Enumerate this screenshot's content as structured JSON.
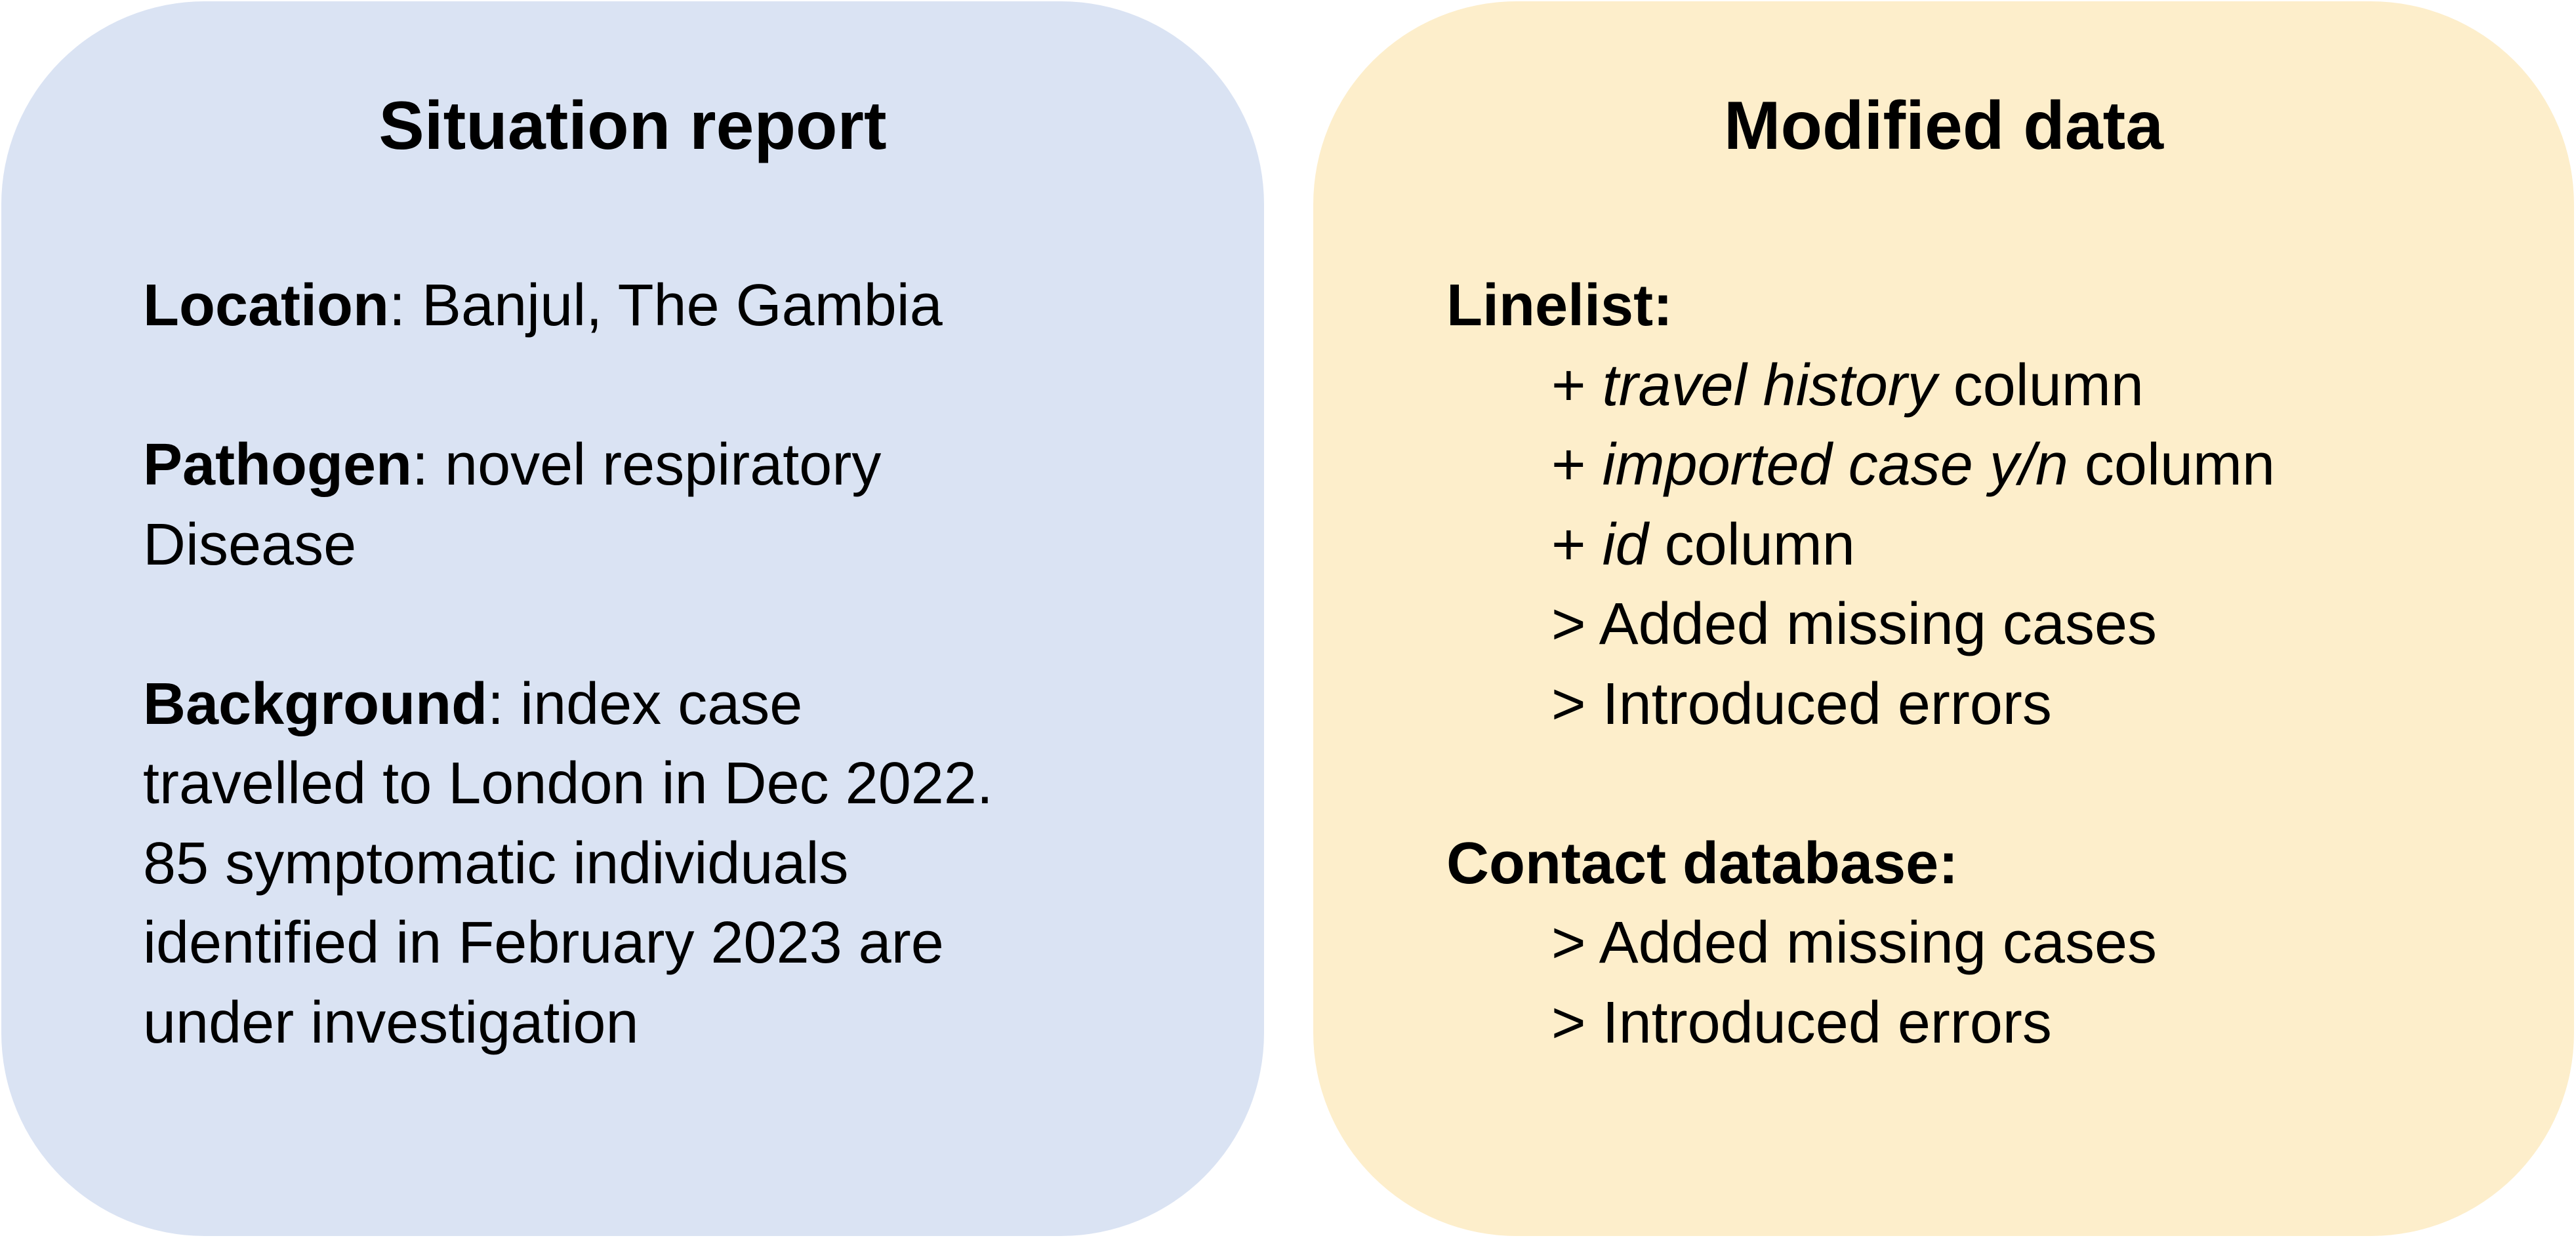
{
  "situation_report": {
    "title": "Situation report",
    "location": {
      "label": "Location",
      "value": ": Banjul, The Gambia"
    },
    "pathogen": {
      "label": "Pathogen",
      "value_line1": ": novel respiratory",
      "value_line2": "Disease"
    },
    "background": {
      "label": "Background",
      "value_line1": ": index case",
      "value_line2": "travelled to London in Dec 2022.",
      "value_line3": "85 symptomatic individuals",
      "value_line4": "identified in February 2023 are",
      "value_line5": "under investigation"
    }
  },
  "modified_data": {
    "title": "Modified data",
    "linelist": {
      "heading": "Linelist:",
      "items": [
        {
          "prefix": "+ ",
          "emph": "travel history",
          "suffix": " column"
        },
        {
          "prefix": "+ ",
          "emph": "imported case y/n",
          "suffix": " column"
        },
        {
          "prefix": "+ ",
          "emph": "id",
          "suffix": " column"
        },
        {
          "text": "> Added missing cases"
        },
        {
          "text": "> Introduced errors"
        }
      ]
    },
    "contact_database": {
      "heading": "Contact database:",
      "items": [
        {
          "text": "> Added missing cases"
        },
        {
          "text": "> Introduced errors"
        }
      ]
    }
  },
  "colors": {
    "left_panel": "#dae3f3",
    "right_panel": "#fdeecb",
    "text": "#000000"
  }
}
